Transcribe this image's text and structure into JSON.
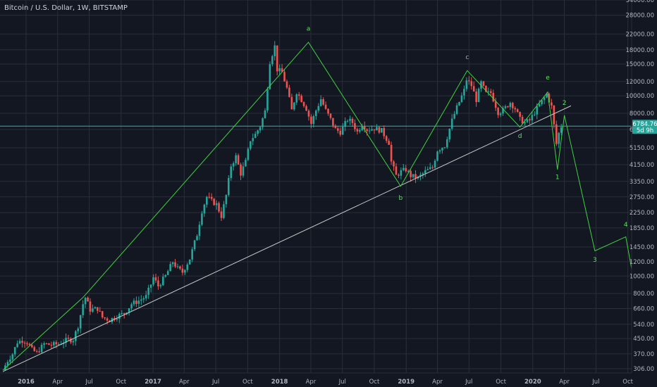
{
  "title": "Bitcoin / U.S. Dollar, 1W, BITSTAMP",
  "colors": {
    "background": "#131722",
    "grid": "#2a2e39",
    "up": "#26a69a",
    "down": "#ef5350",
    "wave": "#3fd13f",
    "trendline": "#c8c8c8",
    "hline": "#2bb5a8",
    "tag": "#26a69a"
  },
  "price_tag": {
    "price": "6784.76",
    "countdown": "5d 9h"
  },
  "hline_price": 6784.76,
  "chart_data": {
    "type": "candlestick",
    "symbol": "BTCUSD",
    "exchange": "BITSTAMP",
    "interval": "1W",
    "yscale": "log",
    "ylim": [
      290,
      34000
    ],
    "xlim": [
      "2015-10-26",
      "2020-10-20"
    ],
    "y_ticks": [
      34000,
      28000,
      22000,
      18000,
      15000,
      12000,
      10000,
      8000,
      6500,
      5150,
      4150,
      3350,
      2750,
      2250,
      1850,
      1450,
      1200,
      1000,
      800,
      660,
      540,
      450,
      370,
      306
    ],
    "x_ticks": [
      {
        "label": "2016",
        "date": "2016-01-01"
      },
      {
        "label": "Apr",
        "date": "2016-04-01"
      },
      {
        "label": "Jul",
        "date": "2016-07-01"
      },
      {
        "label": "Oct",
        "date": "2016-10-01"
      },
      {
        "label": "2017",
        "date": "2017-01-01"
      },
      {
        "label": "Apr",
        "date": "2017-04-01"
      },
      {
        "label": "Jul",
        "date": "2017-07-01"
      },
      {
        "label": "Oct",
        "date": "2017-10-01"
      },
      {
        "label": "2018",
        "date": "2018-01-01"
      },
      {
        "label": "Apr",
        "date": "2018-04-01"
      },
      {
        "label": "Jul",
        "date": "2018-07-01"
      },
      {
        "label": "Oct",
        "date": "2018-10-01"
      },
      {
        "label": "2019",
        "date": "2019-01-01"
      },
      {
        "label": "Apr",
        "date": "2019-04-01"
      },
      {
        "label": "Jul",
        "date": "2019-07-01"
      },
      {
        "label": "Oct",
        "date": "2019-10-01"
      },
      {
        "label": "2020",
        "date": "2020-01-01"
      },
      {
        "label": "Apr",
        "date": "2020-04-01"
      },
      {
        "label": "Jul",
        "date": "2020-07-01"
      },
      {
        "label": "Oct",
        "date": "2020-10-01"
      }
    ],
    "close_path": [
      [
        "2015-10-26",
        300
      ],
      [
        "2015-11-09",
        340
      ],
      [
        "2015-11-23",
        370
      ],
      [
        "2015-12-07",
        430
      ],
      [
        "2015-12-21",
        440
      ],
      [
        "2016-01-04",
        430
      ],
      [
        "2016-01-18",
        390
      ],
      [
        "2016-02-01",
        375
      ],
      [
        "2016-02-22",
        420
      ],
      [
        "2016-03-14",
        415
      ],
      [
        "2016-04-04",
        420
      ],
      [
        "2016-04-25",
        440
      ],
      [
        "2016-05-16",
        445
      ],
      [
        "2016-05-30",
        530
      ],
      [
        "2016-06-13",
        700
      ],
      [
        "2016-06-20",
        760
      ],
      [
        "2016-07-04",
        650
      ],
      [
        "2016-07-25",
        660
      ],
      [
        "2016-08-08",
        590
      ],
      [
        "2016-08-29",
        570
      ],
      [
        "2016-09-19",
        600
      ],
      [
        "2016-10-10",
        620
      ],
      [
        "2016-10-31",
        700
      ],
      [
        "2016-11-21",
        730
      ],
      [
        "2016-12-12",
        770
      ],
      [
        "2016-12-26",
        900
      ],
      [
        "2017-01-02",
        980
      ],
      [
        "2017-01-16",
        880
      ],
      [
        "2017-02-06",
        1000
      ],
      [
        "2017-02-27",
        1200
      ],
      [
        "2017-03-13",
        1100
      ],
      [
        "2017-03-27",
        1050
      ],
      [
        "2017-04-17",
        1250
      ],
      [
        "2017-05-08",
        1700
      ],
      [
        "2017-05-22",
        2300
      ],
      [
        "2017-06-05",
        2750
      ],
      [
        "2017-06-19",
        2600
      ],
      [
        "2017-07-03",
        2500
      ],
      [
        "2017-07-17",
        2150
      ],
      [
        "2017-07-31",
        2800
      ],
      [
        "2017-08-14",
        4100
      ],
      [
        "2017-08-28",
        4600
      ],
      [
        "2017-09-11",
        3700
      ],
      [
        "2017-09-25",
        4300
      ],
      [
        "2017-10-09",
        5700
      ],
      [
        "2017-10-23",
        6100
      ],
      [
        "2017-11-06",
        6800
      ],
      [
        "2017-11-20",
        8200
      ],
      [
        "2017-12-04",
        15500
      ],
      [
        "2017-12-18",
        18800
      ],
      [
        "2017-12-25",
        14000
      ],
      [
        "2018-01-08",
        13500
      ],
      [
        "2018-01-22",
        11000
      ],
      [
        "2018-02-05",
        8300
      ],
      [
        "2018-02-19",
        10500
      ],
      [
        "2018-03-05",
        9500
      ],
      [
        "2018-03-19",
        8500
      ],
      [
        "2018-04-02",
        7000
      ],
      [
        "2018-04-16",
        8300
      ],
      [
        "2018-04-30",
        9600
      ],
      [
        "2018-05-14",
        8300
      ],
      [
        "2018-05-28",
        7400
      ],
      [
        "2018-06-11",
        6500
      ],
      [
        "2018-06-25",
        6300
      ],
      [
        "2018-07-16",
        7400
      ],
      [
        "2018-07-30",
        7100
      ],
      [
        "2018-08-13",
        6300
      ],
      [
        "2018-08-27",
        7000
      ],
      [
        "2018-09-10",
        6500
      ],
      [
        "2018-10-01",
        6600
      ],
      [
        "2018-10-22",
        6400
      ],
      [
        "2018-11-12",
        5500
      ],
      [
        "2018-11-19",
        4300
      ],
      [
        "2018-12-03",
        3600
      ],
      [
        "2018-12-17",
        3800
      ],
      [
        "2018-12-31",
        3900
      ],
      [
        "2019-01-14",
        3600
      ],
      [
        "2019-02-04",
        3500
      ],
      [
        "2019-02-25",
        3800
      ],
      [
        "2019-03-18",
        4000
      ],
      [
        "2019-04-01",
        5000
      ],
      [
        "2019-04-22",
        5300
      ],
      [
        "2019-05-13",
        7300
      ],
      [
        "2019-05-27",
        8600
      ],
      [
        "2019-06-17",
        10700
      ],
      [
        "2019-06-24",
        12300
      ],
      [
        "2019-07-08",
        11400
      ],
      [
        "2019-07-22",
        9500
      ],
      [
        "2019-08-05",
        11800
      ],
      [
        "2019-08-19",
        10300
      ],
      [
        "2019-09-02",
        10400
      ],
      [
        "2019-09-23",
        8100
      ],
      [
        "2019-10-07",
        8300
      ],
      [
        "2019-10-28",
        9200
      ],
      [
        "2019-11-11",
        8500
      ],
      [
        "2019-11-25",
        7400
      ],
      [
        "2019-12-09",
        7100
      ],
      [
        "2019-12-23",
        7300
      ],
      [
        "2020-01-06",
        8100
      ],
      [
        "2020-01-27",
        9300
      ],
      [
        "2020-02-10",
        10200
      ],
      [
        "2020-02-24",
        8700
      ],
      [
        "2020-03-09",
        5400
      ],
      [
        "2020-03-16",
        6200
      ],
      [
        "2020-03-23",
        6800
      ]
    ],
    "wave_path": [
      [
        "2015-10-26",
        300
      ],
      [
        "2016-06-13",
        760
      ],
      [
        "2018-03-25",
        19800
      ],
      [
        "2018-12-16",
        3150
      ],
      [
        "2019-06-26",
        13800
      ],
      [
        "2019-11-25",
        6700
      ],
      [
        "2020-02-13",
        10500
      ],
      [
        "2020-03-12",
        3900
      ],
      [
        "2020-04-01",
        7800
      ],
      [
        "2020-06-28",
        1380
      ],
      [
        "2020-09-25",
        1650
      ],
      [
        "2020-10-20",
        900
      ]
    ],
    "wave_labels": [
      {
        "text": "a",
        "date": "2018-03-25",
        "price": 23000
      },
      {
        "text": "b",
        "date": "2018-12-16",
        "price": 2650
      },
      {
        "text": "c",
        "date": "2019-06-26",
        "price": 16000
      },
      {
        "text": "d",
        "date": "2019-11-25",
        "price": 5850
      },
      {
        "text": "e",
        "date": "2020-02-13",
        "price": 12300
      },
      {
        "text": "1",
        "date": "2020-03-12",
        "price": 3450
      },
      {
        "text": "2",
        "date": "2020-04-01",
        "price": 8900
      },
      {
        "text": "3",
        "date": "2020-06-28",
        "price": 1200
      },
      {
        "text": "4",
        "date": "2020-09-25",
        "price": 1880
      }
    ],
    "trendline": [
      [
        "2015-10-26",
        295
      ],
      [
        "2020-04-20",
        8800
      ]
    ]
  }
}
